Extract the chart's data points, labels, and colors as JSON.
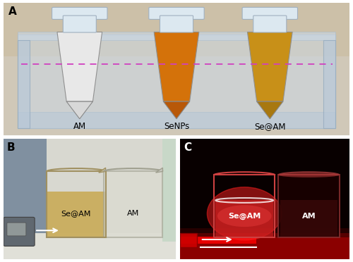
{
  "figure_width": 5.0,
  "figure_height": 3.72,
  "dpi": 100,
  "background_color": "#ffffff",
  "panel_A": {
    "bg_top": "#c8c0b0",
    "bg_bottom": "#d8d0c0",
    "rack_color": "#d8e8f0",
    "rack_edge": "#b0c8d8",
    "rack_top_color": "#e0e8f0",
    "tube_labels": [
      "AM",
      "SeNPs",
      "Se@AM"
    ],
    "tube_colors": [
      "#e8e8e8",
      "#d4720a",
      "#c89018"
    ],
    "tube_tip_colors": [
      "#d8d8d8",
      "#b85808",
      "#a87810"
    ],
    "tube_cap_color": "#d8e0e8",
    "dashed_line_color": "#d040c0",
    "text_color": "#000000",
    "label": "A"
  },
  "panel_B": {
    "bg_color": "#c8c8c0",
    "bg_right": "#e8e8e0",
    "surface_color": "#e0e0d8",
    "beaker1_body": "#d4b060",
    "beaker1_glass": "#c8c090",
    "beaker2_glass": "#d8d8d0",
    "beaker_labels": [
      "Se@AM",
      "AM"
    ],
    "text_color": "#000000",
    "device_color": "#606870",
    "device_face": "#787878",
    "label": "B"
  },
  "panel_C": {
    "bg_dark": "#0a0000",
    "bg_mid": "#200808",
    "laser_red": "#cc1010",
    "laser_glow": "#ff2020",
    "beaker1_color": "#a01010",
    "beaker1_bright": "#ff4040",
    "beaker2_color": "#300808",
    "beaker_labels": [
      "Se@AM",
      "AM"
    ],
    "text_color": "#ffffff",
    "label": "C"
  },
  "border_color": "#606060",
  "gap_color": "#ffffff"
}
